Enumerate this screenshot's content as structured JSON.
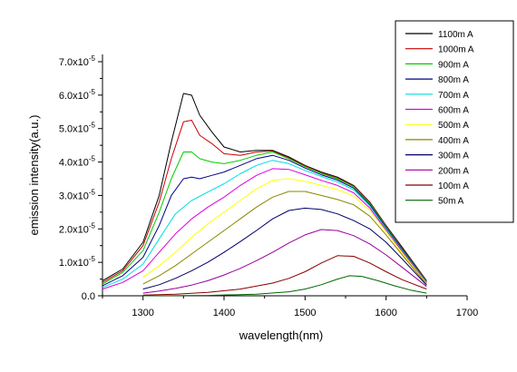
{
  "chart_data": {
    "type": "line",
    "xlabel": "wavelength(nm)",
    "ylabel": "emission intensity(a.u.)",
    "xlim": [
      1250,
      1700
    ],
    "ylim": [
      0,
      7e-05
    ],
    "x_ticks": [
      1300,
      1400,
      1500,
      1600,
      1700
    ],
    "x_tick_labels": [
      "1300",
      "1400",
      "1500",
      "1600",
      "1700"
    ],
    "y_ticks": [
      0,
      1e-05,
      2e-05,
      3e-05,
      4e-05,
      5e-05,
      6e-05,
      7e-05
    ],
    "y_tick_labels": [
      {
        "mantissa": "0.0",
        "exp": ""
      },
      {
        "mantissa": "1.0x10",
        "exp": "-5"
      },
      {
        "mantissa": "2.0x10",
        "exp": "-5"
      },
      {
        "mantissa": "3.0x10",
        "exp": "-5"
      },
      {
        "mantissa": "4.0x10",
        "exp": "-5"
      },
      {
        "mantissa": "5.0x10",
        "exp": "-5"
      },
      {
        "mantissa": "6.0x10",
        "exp": "-5"
      },
      {
        "mantissa": "7.0x10",
        "exp": "-5"
      }
    ],
    "grid": false,
    "legend_position": "top-right",
    "series": [
      {
        "name": "1100m A",
        "color": "#000000",
        "x": [
          1250,
          1275,
          1300,
          1320,
          1335,
          1350,
          1360,
          1370,
          1385,
          1400,
          1420,
          1440,
          1460,
          1480,
          1500,
          1520,
          1540,
          1560,
          1580,
          1600,
          1620,
          1650
        ],
        "y": [
          4.5e-06,
          8e-06,
          1.6e-05,
          3e-05,
          4.6e-05,
          6.05e-05,
          6e-05,
          5.4e-05,
          4.9e-05,
          4.45e-05,
          4.3e-05,
          4.35e-05,
          4.35e-05,
          4.15e-05,
          3.9e-05,
          3.7e-05,
          3.55e-05,
          3.3e-05,
          2.8e-05,
          2.1e-05,
          1.45e-05,
          4.5e-06
        ]
      },
      {
        "name": "1000m A",
        "color": "#cc0000",
        "x": [
          1250,
          1275,
          1300,
          1320,
          1335,
          1350,
          1360,
          1370,
          1385,
          1400,
          1420,
          1440,
          1460,
          1480,
          1500,
          1520,
          1540,
          1560,
          1580,
          1600,
          1620,
          1650
        ],
        "y": [
          4e-06,
          7.5e-06,
          1.5e-05,
          2.8e-05,
          4.1e-05,
          5.2e-05,
          5.25e-05,
          4.8e-05,
          4.55e-05,
          4.25e-05,
          4.2e-05,
          4.3e-05,
          4.33e-05,
          4.12e-05,
          3.88e-05,
          3.68e-05,
          3.52e-05,
          3.28e-05,
          2.78e-05,
          2.08e-05,
          1.42e-05,
          4.3e-06
        ]
      },
      {
        "name": "900m A",
        "color": "#00cc00",
        "x": [
          1250,
          1275,
          1300,
          1320,
          1335,
          1350,
          1360,
          1370,
          1385,
          1400,
          1420,
          1440,
          1460,
          1480,
          1500,
          1520,
          1540,
          1560,
          1580,
          1600,
          1620,
          1650
        ],
        "y": [
          3.5e-06,
          7e-06,
          1.35e-05,
          2.5e-05,
          3.5e-05,
          4.3e-05,
          4.3e-05,
          4.1e-05,
          4e-05,
          3.95e-05,
          4.05e-05,
          4.2e-05,
          4.3e-05,
          4.1e-05,
          3.86e-05,
          3.66e-05,
          3.5e-05,
          3.26e-05,
          2.76e-05,
          2.06e-05,
          1.4e-05,
          4.2e-06
        ]
      },
      {
        "name": "800m A",
        "color": "#000088",
        "x": [
          1250,
          1275,
          1300,
          1320,
          1335,
          1350,
          1360,
          1370,
          1385,
          1400,
          1420,
          1440,
          1460,
          1480,
          1500,
          1520,
          1540,
          1560,
          1580,
          1600,
          1620,
          1650
        ],
        "y": [
          3e-06,
          6e-06,
          1.15e-05,
          2.1e-05,
          3e-05,
          3.5e-05,
          3.55e-05,
          3.5e-05,
          3.6e-05,
          3.7e-05,
          3.9e-05,
          4.1e-05,
          4.2e-05,
          4.05e-05,
          3.82e-05,
          3.62e-05,
          3.46e-05,
          3.22e-05,
          2.72e-05,
          2.03e-05,
          1.38e-05,
          4.1e-06
        ]
      },
      {
        "name": "700m A",
        "color": "#00dddd",
        "x": [
          1250,
          1275,
          1300,
          1320,
          1340,
          1360,
          1380,
          1400,
          1420,
          1440,
          1460,
          1480,
          1500,
          1520,
          1540,
          1560,
          1580,
          1600,
          1620,
          1650
        ],
        "y": [
          2.5e-06,
          5e-06,
          9.5e-06,
          1.7e-05,
          2.45e-05,
          2.85e-05,
          3.1e-05,
          3.35e-05,
          3.65e-05,
          3.9e-05,
          4.05e-05,
          3.95e-05,
          3.75e-05,
          3.57e-05,
          3.4e-05,
          3.17e-05,
          2.68e-05,
          2e-05,
          1.35e-05,
          4e-06
        ]
      },
      {
        "name": "600m A",
        "color": "#dd00dd",
        "x": [
          1250,
          1275,
          1300,
          1320,
          1340,
          1360,
          1380,
          1400,
          1420,
          1440,
          1460,
          1480,
          1500,
          1520,
          1540,
          1560,
          1580,
          1600,
          1620,
          1650
        ],
        "y": [
          2e-06,
          4e-06,
          7.5e-06,
          1.3e-05,
          1.85e-05,
          2.3e-05,
          2.65e-05,
          2.95e-05,
          3.3e-05,
          3.6e-05,
          3.8e-05,
          3.78e-05,
          3.62e-05,
          3.45e-05,
          3.3e-05,
          3.08e-05,
          2.62e-05,
          1.96e-05,
          1.32e-05,
          3.8e-06
        ]
      },
      {
        "name": "500m A",
        "color": "#ffff00",
        "x": [
          1300,
          1320,
          1340,
          1360,
          1380,
          1400,
          1420,
          1440,
          1460,
          1480,
          1500,
          1520,
          1540,
          1560,
          1580,
          1600,
          1620,
          1650
        ],
        "y": [
          5.5e-06,
          9e-06,
          1.3e-05,
          1.75e-05,
          2.15e-05,
          2.5e-05,
          2.85e-05,
          3.2e-05,
          3.45e-05,
          3.5e-05,
          3.42e-05,
          3.3e-05,
          3.18e-05,
          2.98e-05,
          2.55e-05,
          1.92e-05,
          1.28e-05,
          3.6e-06
        ]
      },
      {
        "name": "400m A",
        "color": "#888800",
        "x": [
          1300,
          1320,
          1340,
          1360,
          1380,
          1400,
          1420,
          1440,
          1460,
          1480,
          1500,
          1520,
          1540,
          1560,
          1580,
          1600,
          1620,
          1650
        ],
        "y": [
          3.5e-06,
          6e-06,
          9e-06,
          1.25e-05,
          1.6e-05,
          1.95e-05,
          2.3e-05,
          2.65e-05,
          2.95e-05,
          3.12e-05,
          3.12e-05,
          3e-05,
          2.88e-05,
          2.72e-05,
          2.38e-05,
          1.82e-05,
          1.22e-05,
          3.4e-06
        ]
      },
      {
        "name": "300m A",
        "color": "#000066",
        "x": [
          1300,
          1320,
          1340,
          1360,
          1380,
          1400,
          1420,
          1440,
          1460,
          1480,
          1500,
          1520,
          1540,
          1560,
          1580,
          1600,
          1620,
          1650
        ],
        "y": [
          2e-06,
          3.3e-06,
          5.2e-06,
          7.5e-06,
          1e-05,
          1.3e-05,
          1.62e-05,
          1.95e-05,
          2.3e-05,
          2.55e-05,
          2.62e-05,
          2.58e-05,
          2.45e-05,
          2.25e-05,
          2e-05,
          1.6e-05,
          1.1e-05,
          3.2e-06
        ]
      },
      {
        "name": "200m A",
        "color": "#990099",
        "x": [
          1300,
          1320,
          1340,
          1360,
          1380,
          1400,
          1420,
          1440,
          1460,
          1480,
          1500,
          1520,
          1540,
          1560,
          1580,
          1600,
          1620,
          1650
        ],
        "y": [
          8e-07,
          1.4e-06,
          2.2e-06,
          3.2e-06,
          4.5e-06,
          6.2e-06,
          8.2e-06,
          1.05e-05,
          1.3e-05,
          1.58e-05,
          1.82e-05,
          1.98e-05,
          1.95e-05,
          1.8e-05,
          1.55e-05,
          1.22e-05,
          8.5e-06,
          2.8e-06
        ]
      },
      {
        "name": "100m A",
        "color": "#880000",
        "x": [
          1300,
          1340,
          1380,
          1420,
          1460,
          1480,
          1500,
          1520,
          1540,
          1560,
          1580,
          1600,
          1620,
          1650
        ],
        "y": [
          2e-07,
          5e-07,
          1e-06,
          2e-06,
          3.8e-06,
          5.2e-06,
          7.2e-06,
          9.8e-06,
          1.2e-05,
          1.18e-05,
          9.8e-06,
          7.2e-06,
          4.8e-06,
          2e-06
        ]
      },
      {
        "name": "50m A",
        "color": "#006600",
        "x": [
          1300,
          1380,
          1440,
          1480,
          1500,
          1520,
          1540,
          1555,
          1570,
          1590,
          1610,
          1630,
          1650
        ],
        "y": [
          0.0,
          1e-07,
          5e-07,
          1.2e-06,
          2e-06,
          3.3e-06,
          5e-06,
          6e-06,
          5.8e-06,
          4.5e-06,
          3e-06,
          1.7e-06,
          8e-07
        ]
      }
    ]
  }
}
